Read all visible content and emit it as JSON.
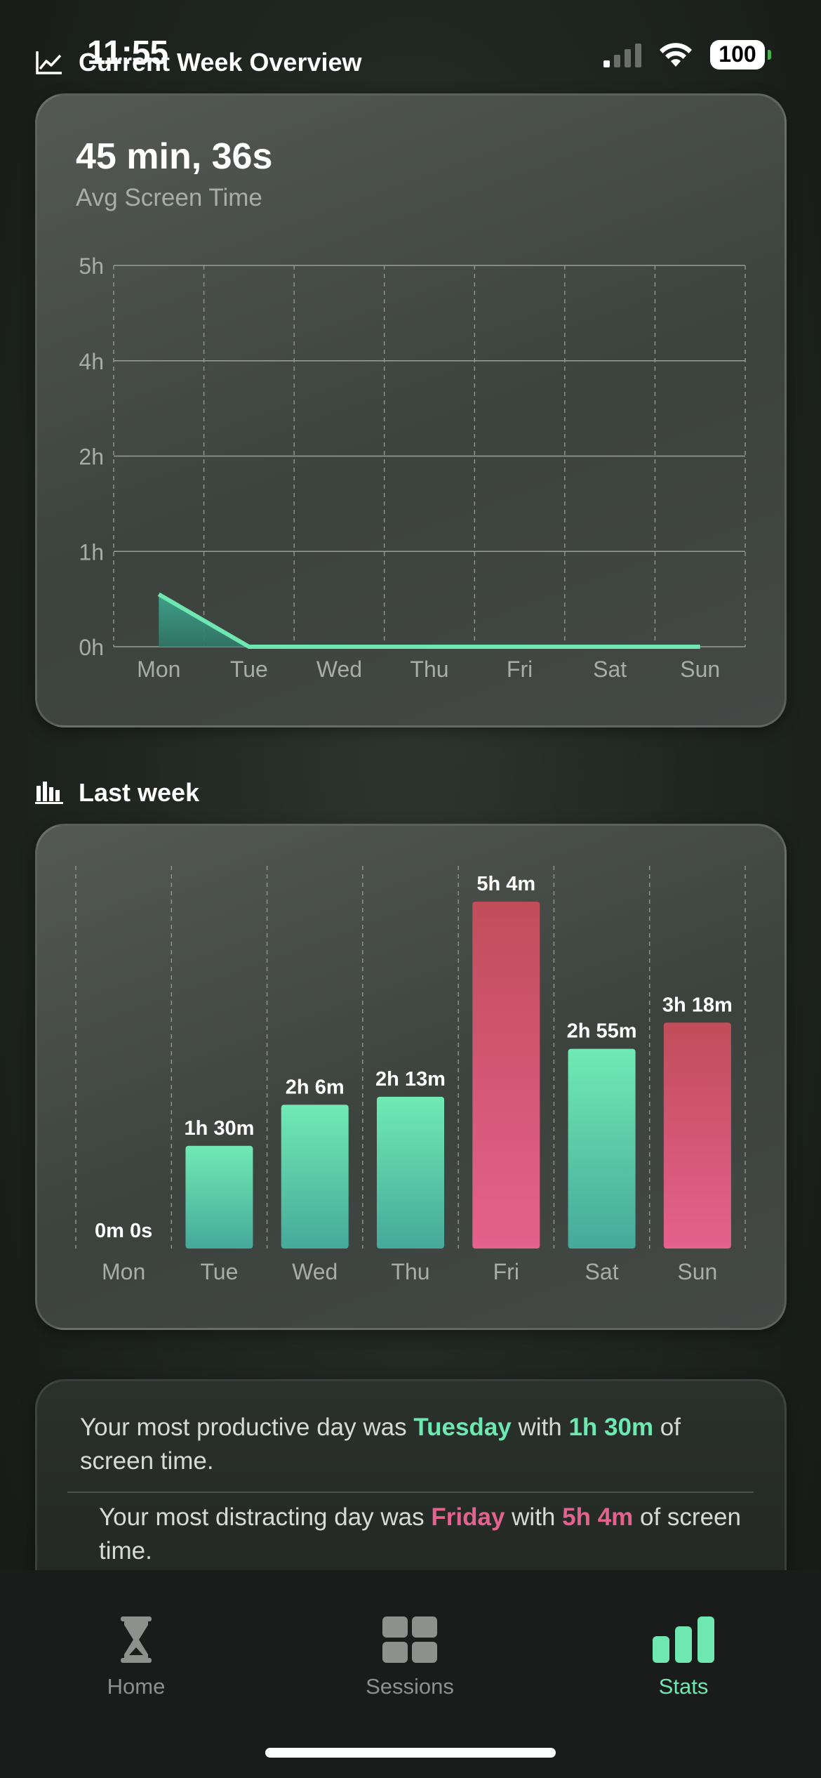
{
  "status_bar": {
    "time": "11:55",
    "battery": "100"
  },
  "current_week": {
    "section_title": "Current Week Overview",
    "avg_value": "45 min, 36s",
    "avg_label": "Avg Screen Time"
  },
  "last_week": {
    "section_title": "Last week"
  },
  "insights": {
    "productive": {
      "prefix": "Your most productive day was ",
      "day": "Tuesday",
      "mid": " with ",
      "amount": "1h 30m",
      "suffix": " of screen time."
    },
    "distracting": {
      "prefix": "Your most distracting day was ",
      "day": "Friday",
      "mid": " with ",
      "amount": "5h 4m",
      "suffix": " of screen time."
    }
  },
  "tabs": [
    {
      "label": "Home",
      "icon": "hourglass-icon",
      "active": false
    },
    {
      "label": "Sessions",
      "icon": "grid-icon",
      "active": false
    },
    {
      "label": "Stats",
      "icon": "bar-chart-icon",
      "active": true
    }
  ],
  "colors": {
    "accent_green": "#6ee7b0",
    "accent_pink": "#e3628f",
    "bar_red_top": "#c14d5a",
    "bar_teal_bottom": "#46a99a"
  },
  "chart_data": [
    {
      "type": "area",
      "categories": [
        "Mon",
        "Tue",
        "Wed",
        "Thu",
        "Fri",
        "Sat",
        "Sun"
      ],
      "y_ticks": [
        "0h",
        "1h",
        "2h",
        "4h",
        "5h"
      ],
      "values_hours": [
        0.55,
        0,
        0,
        0,
        0,
        0,
        0
      ],
      "grid": true
    },
    {
      "type": "bar",
      "categories": [
        "Mon",
        "Tue",
        "Wed",
        "Thu",
        "Fri",
        "Sat",
        "Sun"
      ],
      "values_minutes": [
        0,
        90,
        126,
        133,
        304,
        175,
        198
      ],
      "labels": [
        "0m 0s",
        "1h 30m",
        "2h 6m",
        "2h 13m",
        "5h 4m",
        "2h 55m",
        "3h 18m"
      ],
      "highlight": [
        false,
        false,
        false,
        false,
        true,
        false,
        true
      ]
    }
  ]
}
